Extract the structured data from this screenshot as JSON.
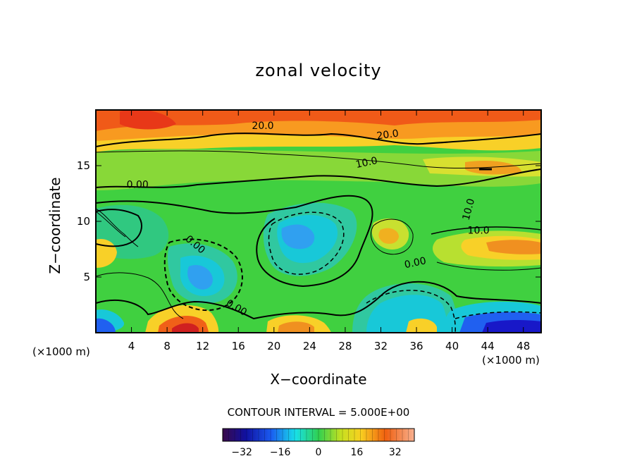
{
  "chart_data": {
    "type": "heatmap",
    "title": "zonal velocity",
    "xlabel": "X−coordinate",
    "ylabel": "Z−coordinate",
    "x_unit_label": "(×1000 m)",
    "xlim": [
      0,
      50
    ],
    "ylim": [
      0,
      20
    ],
    "x_ticks": [
      "4",
      "8",
      "12",
      "16",
      "20",
      "24",
      "28",
      "32",
      "36",
      "40",
      "44",
      "48"
    ],
    "y_ticks": [
      "5",
      "10",
      "15"
    ],
    "contour_labels": [
      "20.0",
      "20.0",
      "10.0",
      "0.00",
      "10.0",
      "10.0",
      "0.00",
      "0.00",
      "0.00"
    ],
    "contour_interval_text": "CONTOUR INTERVAL = 5.000E+00",
    "colorbar": {
      "range": [
        -40,
        40
      ],
      "ticks": [
        "−32",
        "−16",
        "0",
        "16",
        "32"
      ]
    }
  }
}
